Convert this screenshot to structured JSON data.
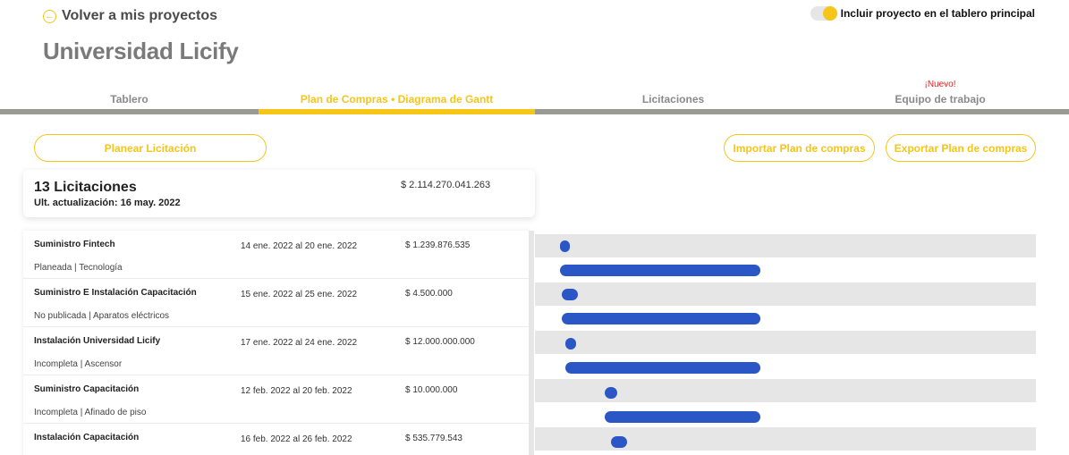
{
  "header": {
    "back_label": "Volver a mis proyectos",
    "back_icon": "arrow-left-circle-icon",
    "toggle_label": "Incluir proyecto en el tablero principal",
    "toggle_on": true,
    "title": "Universidad Licify"
  },
  "colors": {
    "accent": "#f5c518",
    "tab_inactive": "#9a9a94",
    "bar": "#2b56c6",
    "badge": "#e02424"
  },
  "tabs": [
    {
      "label": "Tablero",
      "active": false,
      "badge": ""
    },
    {
      "label": "Plan de Compras • Diagrama de Gantt",
      "active": true,
      "badge": ""
    },
    {
      "label": "Licitaciones",
      "active": false,
      "badge": ""
    },
    {
      "label": "Equipo de trabajo",
      "active": false,
      "badge": "¡Nuevo!"
    }
  ],
  "actions": {
    "plan": "Planear Licitación",
    "import": "Importar Plan de compras",
    "export": "Exportar Plan de compras"
  },
  "summary": {
    "count": "13 Licitaciones",
    "updated": "Ult. actualización: 16 may. 2022",
    "total": "$ 2.114.270.041.263"
  },
  "rows": [
    {
      "name": "Suministro Fintech",
      "status": "Planeada | Tecnología",
      "dates": "14 ene. 2022 al  20 ene. 2022",
      "amount": "$ 1.239.876.535"
    },
    {
      "name": "Suministro E Instalación Capacitación",
      "status": "No publicada | Aparatos eléctricos",
      "dates": "15 ene. 2022 al  25 ene. 2022",
      "amount": "$ 4.500.000"
    },
    {
      "name": "Instalación Universidad Licify",
      "status": "Incompleta | Ascensor",
      "dates": "17 ene. 2022 al  24 ene. 2022",
      "amount": "$ 12.000.000.000"
    },
    {
      "name": "Suministro Capacitación",
      "status": "Incompleta | Afinado de piso",
      "dates": "12 feb. 2022 al  20 feb. 2022",
      "amount": "$ 10.000.000"
    },
    {
      "name": "Instalación Capacitación",
      "status": "",
      "dates": "16 feb. 2022 al  26 feb. 2022",
      "amount": "$ 535.779.543"
    }
  ]
}
